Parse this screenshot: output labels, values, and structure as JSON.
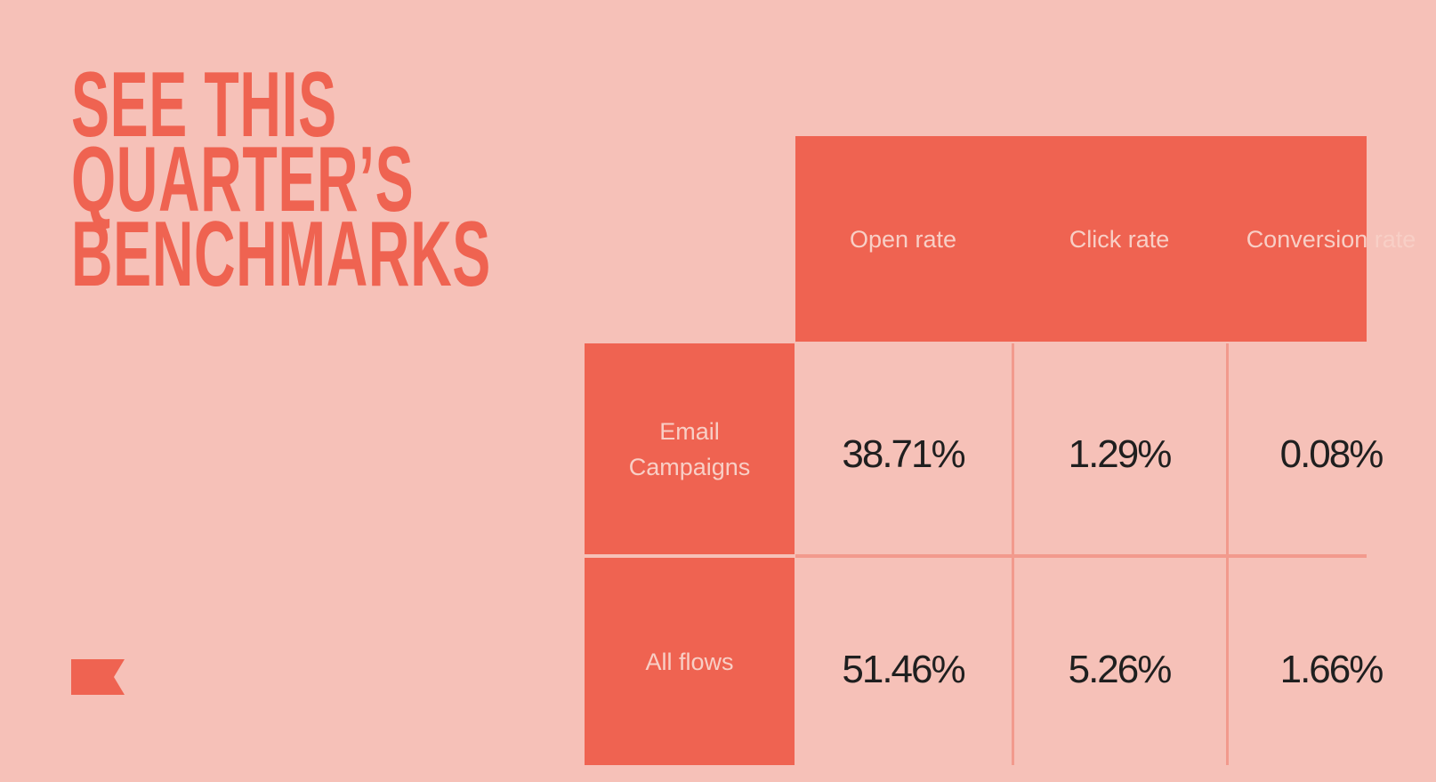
{
  "title": {
    "lines": [
      "SEE THIS",
      "QUARTER’S",
      "BENCHMARKS"
    ]
  },
  "logo": {
    "icon": "flag-icon",
    "color": "#EF6351"
  },
  "table": {
    "columns": [
      "Open rate",
      "Click rate",
      "Conversion rate"
    ],
    "rows": [
      {
        "label": "Email Campaigns",
        "values": [
          "38.71%",
          "1.29%",
          "0.08%"
        ]
      },
      {
        "label": "All flows",
        "values": [
          "51.46%",
          "5.26%",
          "1.66%"
        ]
      }
    ]
  },
  "colors": {
    "background": "#F6C1B8",
    "accent": "#EF6351",
    "text": "#1F1F1F"
  }
}
